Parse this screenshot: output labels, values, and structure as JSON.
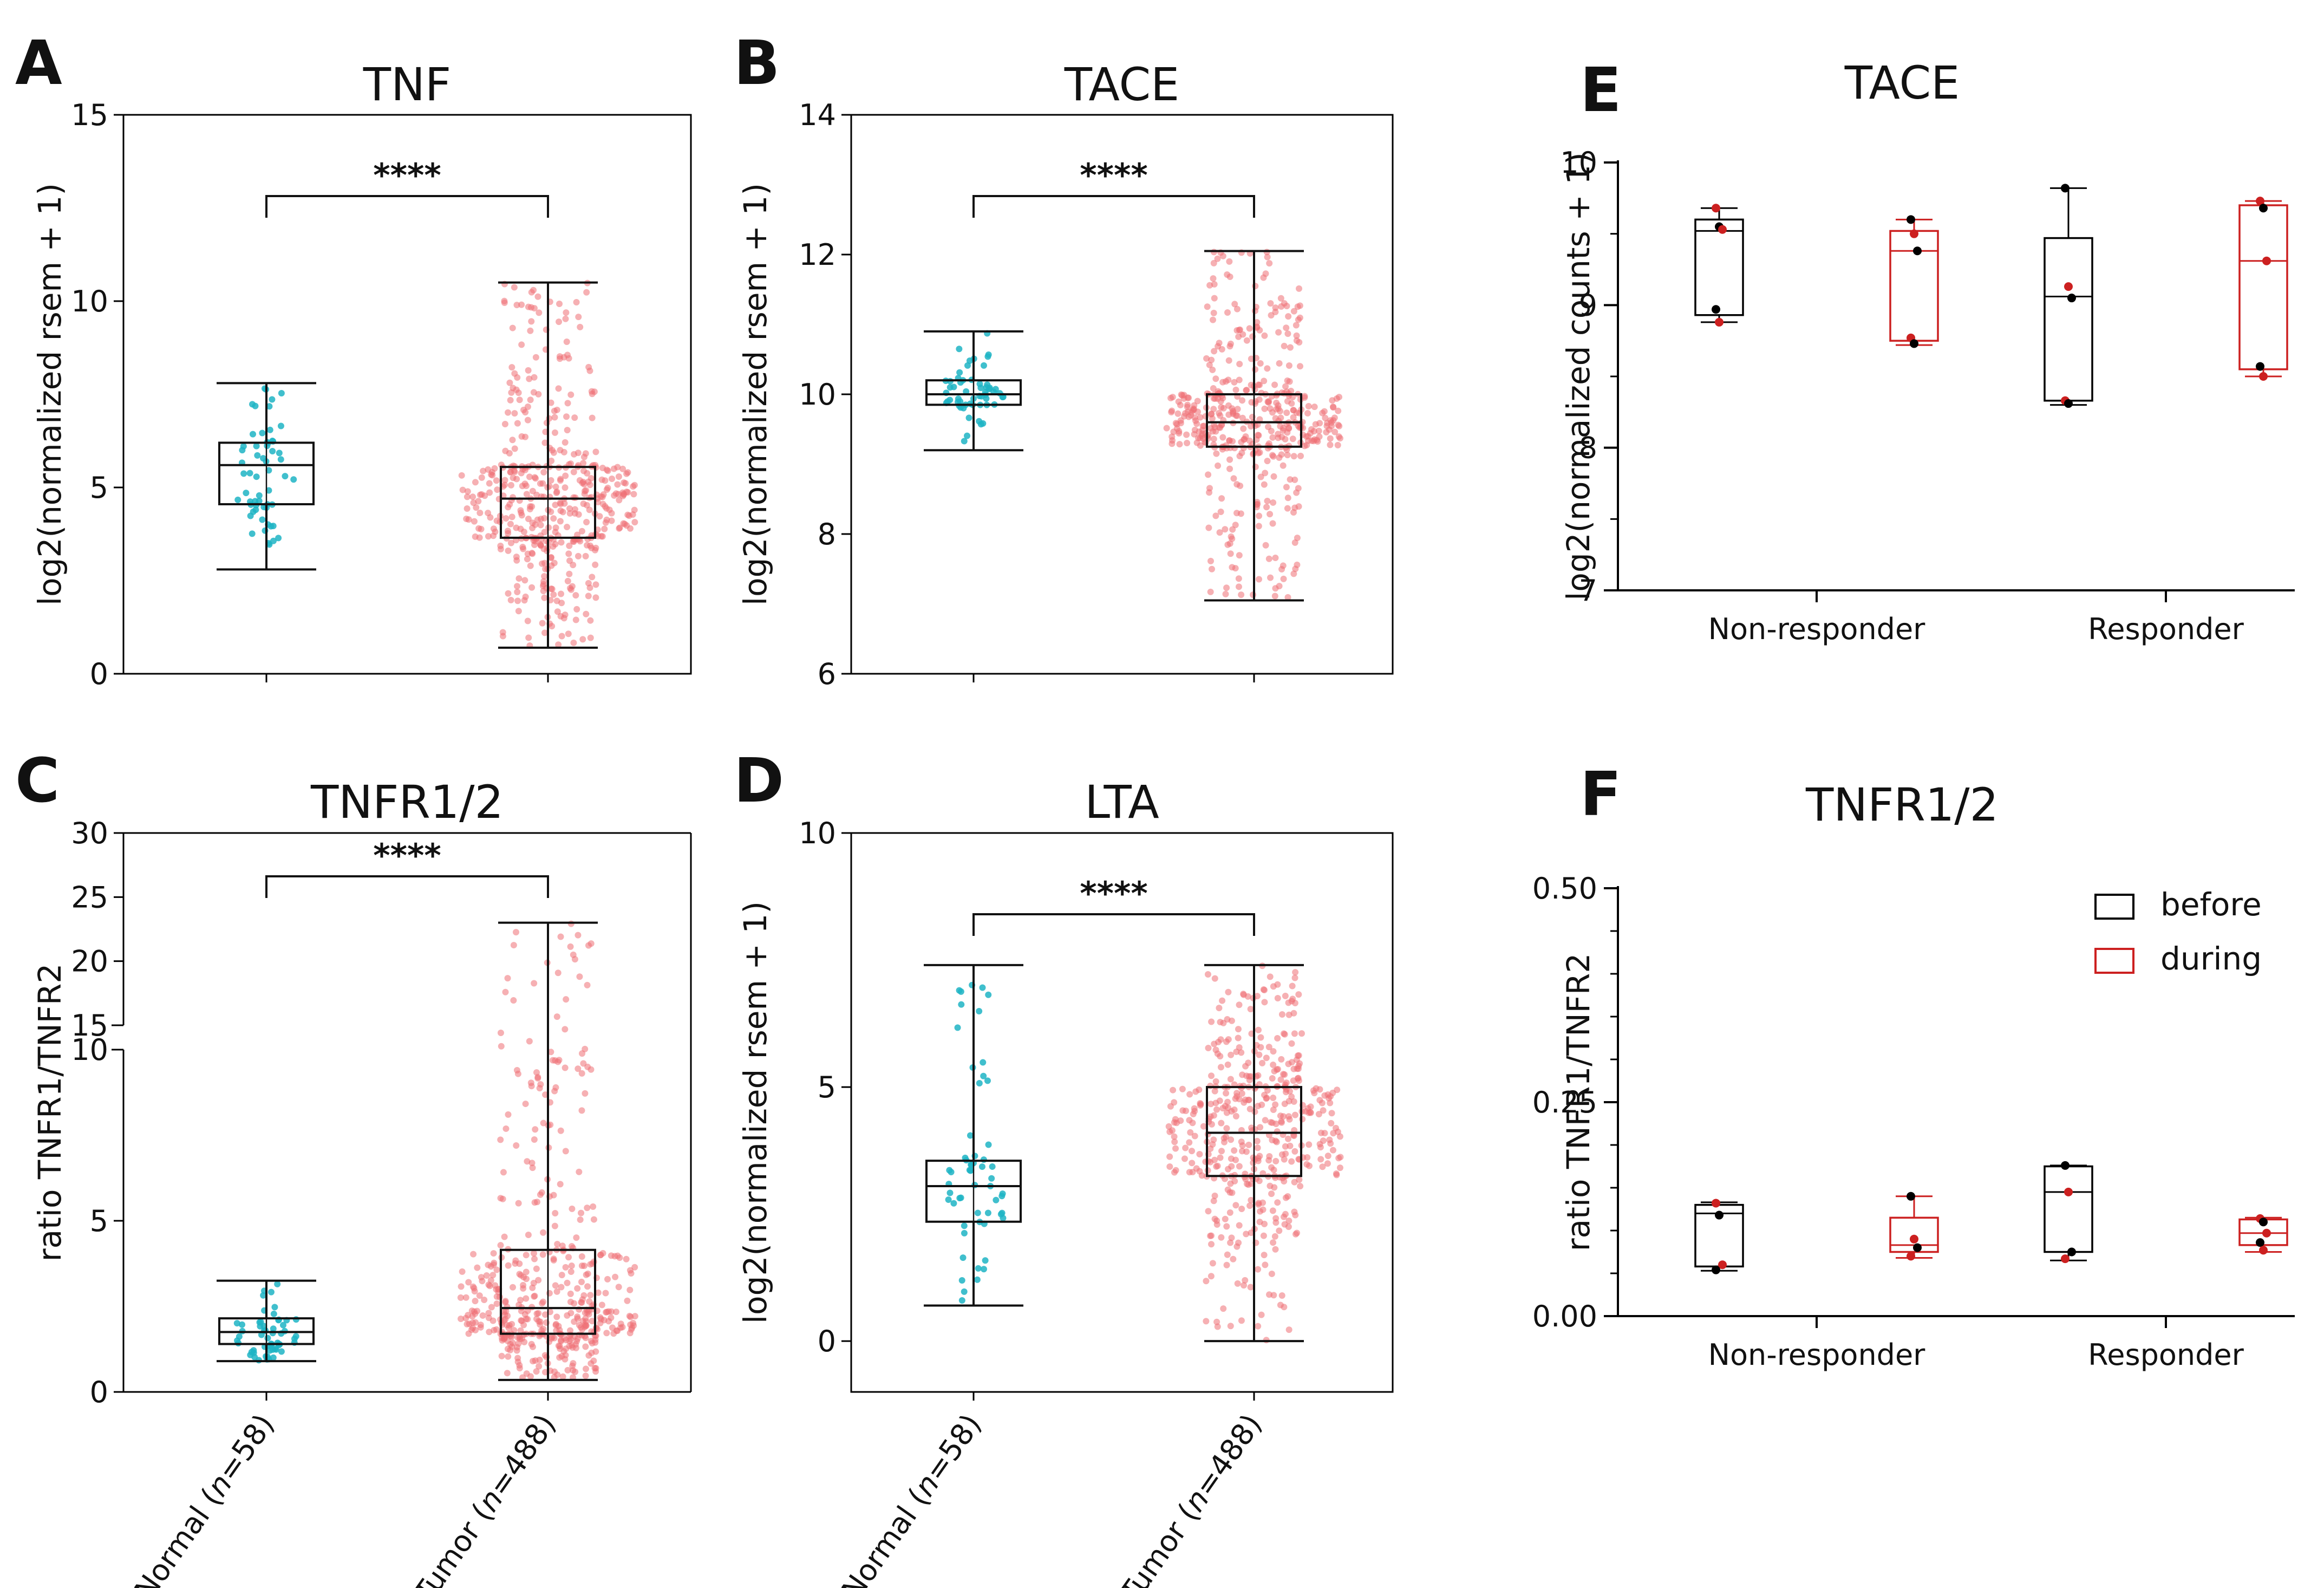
{
  "figure": {
    "panel_labels": [
      "A",
      "B",
      "C",
      "D",
      "E",
      "F"
    ]
  },
  "colors": {
    "normal": "#1fb4c4",
    "tumor": "#ef6f74",
    "before": "#000000",
    "during": "#cc2020",
    "axis": "#000000"
  },
  "chart_data": [
    {
      "panel": "A",
      "type": "box",
      "title": "TNF",
      "ylabel": "log2(normalized rsem + 1)",
      "categories": [
        "Normal (n=58)",
        "Tumor (n=488)"
      ],
      "ylim": [
        0,
        15
      ],
      "yticks": [
        0,
        5,
        10,
        15
      ],
      "boxes": [
        {
          "name": "Normal (n=58)",
          "min": 2.8,
          "q1": 4.55,
          "median": 5.6,
          "q3": 6.2,
          "max": 7.8,
          "n": 58,
          "color": "normal"
        },
        {
          "name": "Tumor (n=488)",
          "min": 0.7,
          "q1": 3.65,
          "median": 4.7,
          "q3": 5.55,
          "max": 10.5,
          "n": 488,
          "color": "tumor"
        }
      ],
      "significance": "****"
    },
    {
      "panel": "B",
      "type": "box",
      "title": "TACE",
      "ylabel": "log2(normalized rsem + 1)",
      "categories": [
        "Normal (n=58)",
        "Tumor (n=488)"
      ],
      "ylim": [
        6,
        14
      ],
      "yticks": [
        6,
        8,
        10,
        12,
        14
      ],
      "boxes": [
        {
          "name": "Normal (n=58)",
          "min": 9.2,
          "q1": 9.85,
          "median": 10.0,
          "q3": 10.2,
          "max": 10.9,
          "n": 58,
          "color": "normal"
        },
        {
          "name": "Tumor (n=488)",
          "min": 7.05,
          "q1": 9.25,
          "median": 9.6,
          "q3": 10.0,
          "max": 12.05,
          "n": 488,
          "color": "tumor"
        }
      ],
      "significance": "****"
    },
    {
      "panel": "C",
      "type": "box",
      "title": "TNFR1/2",
      "ylabel": "ratio TNFR1/TNFR2",
      "categories": [
        "Normal (n=58)",
        "Tumor (n=488)"
      ],
      "ylim": [
        0,
        30
      ],
      "yticks": [
        0,
        5,
        10,
        15,
        20,
        25,
        30
      ],
      "axis_break": [
        10,
        15
      ],
      "boxes": [
        {
          "name": "Normal (n=58)",
          "min": 0.9,
          "q1": 1.4,
          "median": 1.75,
          "q3": 2.15,
          "max": 3.25,
          "n": 58,
          "color": "normal"
        },
        {
          "name": "Tumor (n=488)",
          "min": 0.35,
          "q1": 1.7,
          "median": 2.45,
          "q3": 4.15,
          "max": 23.0,
          "n": 488,
          "color": "tumor"
        }
      ],
      "significance": "****"
    },
    {
      "panel": "D",
      "type": "box",
      "title": "LTA",
      "ylabel": "log2(normalized rsem + 1)",
      "categories": [
        "Normal (n=58)",
        "Tumor (n=488)"
      ],
      "ylim": [
        -1,
        10
      ],
      "yticks": [
        0,
        5,
        10
      ],
      "boxes": [
        {
          "name": "Normal (n=58)",
          "min": 0.7,
          "q1": 2.35,
          "median": 3.05,
          "q3": 3.55,
          "max": 7.4,
          "n": 58,
          "color": "normal"
        },
        {
          "name": "Tumor (n=488)",
          "min": 0.0,
          "q1": 3.25,
          "median": 4.1,
          "q3": 5.0,
          "max": 7.4,
          "n": 488,
          "color": "tumor"
        }
      ],
      "significance": "****"
    },
    {
      "panel": "E",
      "type": "box",
      "title": "TACE",
      "ylabel": "log2(normalized counts + 1)",
      "categories": [
        "Non-responder",
        "Responder"
      ],
      "ylim": [
        7,
        10
      ],
      "yticks": [
        7,
        8,
        9,
        10
      ],
      "series": [
        {
          "name": "before",
          "color": "before",
          "boxes": [
            {
              "min": 8.88,
              "q1": 8.93,
              "median": 9.52,
              "q3": 9.6,
              "max": 9.68,
              "points": [
                9.68,
                9.55,
                9.53,
                8.97,
                8.88
              ]
            },
            {
              "min": 8.3,
              "q1": 8.33,
              "median": 9.06,
              "q3": 9.47,
              "max": 9.82,
              "points": [
                9.82,
                9.13,
                9.05,
                8.33,
                8.31
              ]
            }
          ]
        },
        {
          "name": "during",
          "color": "during",
          "boxes": [
            {
              "min": 8.72,
              "q1": 8.75,
              "median": 9.38,
              "q3": 9.52,
              "max": 9.6,
              "points": [
                9.6,
                9.5,
                9.38,
                8.77,
                8.73
              ]
            },
            {
              "min": 8.5,
              "q1": 8.55,
              "median": 9.31,
              "q3": 9.7,
              "max": 9.73,
              "points": [
                9.73,
                9.68,
                9.31,
                8.57,
                8.5
              ]
            }
          ]
        }
      ]
    },
    {
      "panel": "F",
      "type": "box",
      "title": "TNFR1/2",
      "ylabel": "ratio TNFR1/TNFR2",
      "categories": [
        "Non-responder",
        "Responder"
      ],
      "ylim": [
        0,
        0.5
      ],
      "yticks": [
        0.0,
        0.25,
        0.5
      ],
      "ytick_labels": [
        "0.00",
        "0.25",
        "0.50"
      ],
      "legend": {
        "position": "top-right",
        "entries": [
          "before",
          "during"
        ]
      },
      "series": [
        {
          "name": "before",
          "color": "before",
          "boxes": [
            {
              "min": 0.053,
              "q1": 0.058,
              "median": 0.12,
              "q3": 0.13,
              "max": 0.133,
              "points": [
                0.132,
                0.118,
                0.06,
                0.054
              ]
            },
            {
              "min": 0.065,
              "q1": 0.075,
              "median": 0.145,
              "q3": 0.175,
              "max": 0.176,
              "points": [
                0.176,
                0.145,
                0.075,
                0.067
              ]
            }
          ]
        },
        {
          "name": "during",
          "color": "during",
          "boxes": [
            {
              "min": 0.068,
              "q1": 0.075,
              "median": 0.083,
              "q3": 0.115,
              "max": 0.14,
              "points": [
                0.14,
                0.09,
                0.08,
                0.07
              ]
            },
            {
              "min": 0.075,
              "q1": 0.083,
              "median": 0.097,
              "q3": 0.113,
              "max": 0.115,
              "points": [
                0.114,
                0.11,
                0.097,
                0.086,
                0.077
              ]
            }
          ]
        }
      ]
    }
  ]
}
